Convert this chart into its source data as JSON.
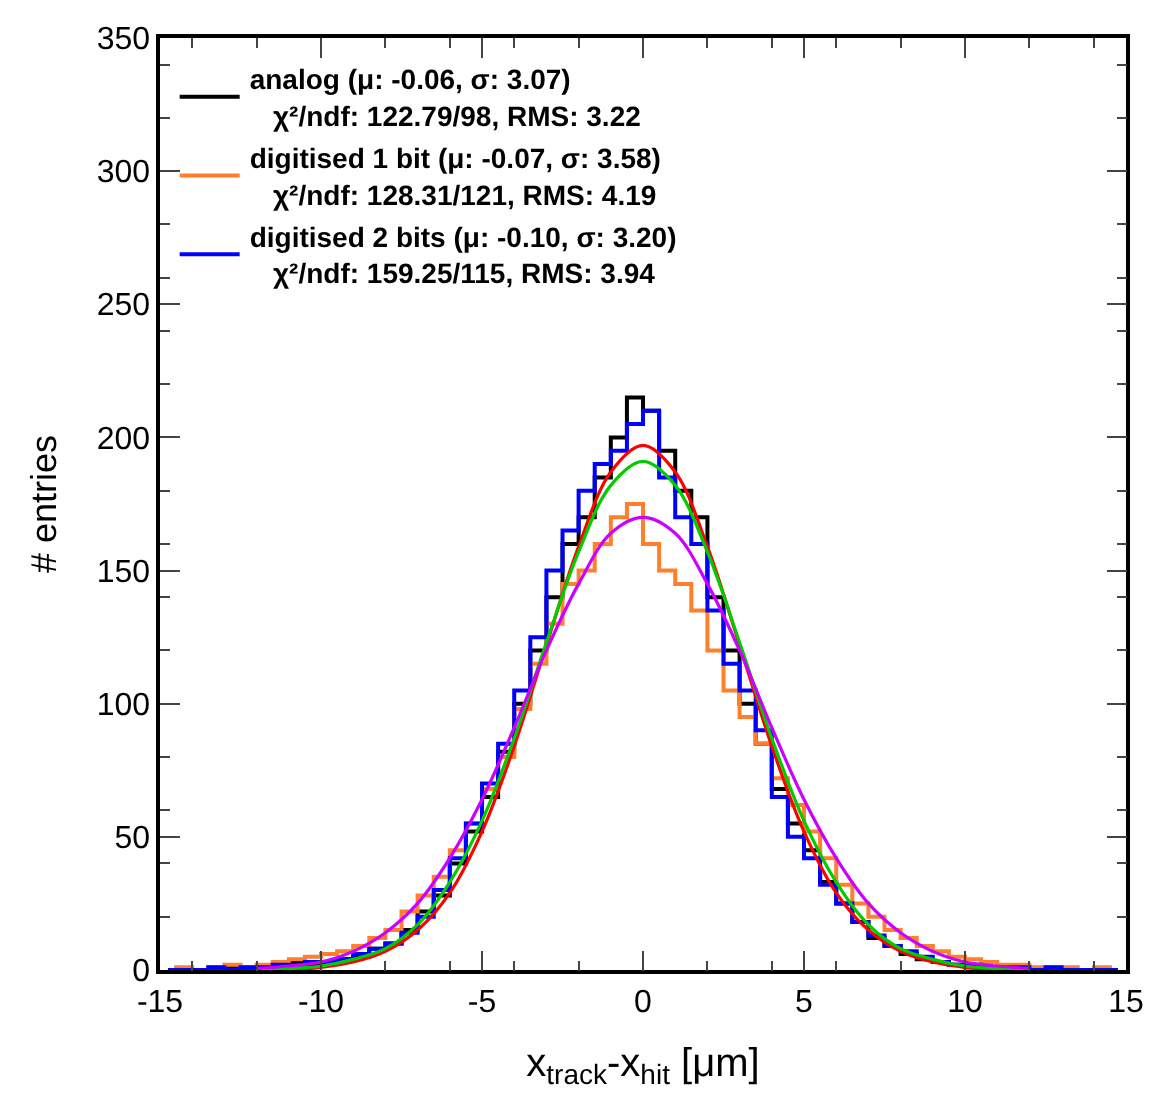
{
  "chart_data": {
    "type": "step",
    "xlabel": "x$_{track}$-x$_{hit}$ [μm]",
    "ylabel": "# entries",
    "xlim": [
      -15,
      15
    ],
    "xticks": [
      -15,
      -10,
      -5,
      0,
      5,
      10,
      15
    ],
    "ylim": [
      0,
      350
    ],
    "yticks": [
      0,
      50,
      100,
      150,
      200,
      250,
      300,
      350
    ],
    "legend": "top left",
    "series": [
      {
        "name": "analog (μ: -0.06, σ: 3.07)\nχ²/ndf: 122.79/98, RMS: 3.22",
        "color": "#000000",
        "x": [
          -14.75,
          -14.25,
          -13.75,
          -13.25,
          -12.75,
          -12.25,
          -11.75,
          -11.25,
          -10.75,
          -10.25,
          -9.75,
          -9.25,
          -8.75,
          -8.25,
          -7.75,
          -7.25,
          -6.75,
          -6.25,
          -5.75,
          -5.25,
          -4.75,
          -4.25,
          -3.75,
          -3.25,
          -2.75,
          -2.25,
          -1.75,
          -1.25,
          -0.75,
          -0.25,
          0.25,
          0.75,
          1.25,
          1.75,
          2.25,
          2.75,
          3.25,
          3.75,
          4.25,
          4.75,
          5.25,
          5.75,
          6.25,
          6.75,
          7.25,
          7.75,
          8.25,
          8.75,
          9.25,
          9.75,
          10.25,
          10.75,
          11.25,
          11.75,
          12.25,
          12.75,
          13.25,
          13.75,
          14.25,
          14.75
        ],
        "values": [
          0,
          0,
          0,
          0,
          1,
          0,
          0,
          2,
          3,
          2,
          3,
          4,
          5,
          8,
          10,
          15,
          22,
          28,
          40,
          52,
          65,
          82,
          100,
          120,
          140,
          160,
          170,
          185,
          200,
          215,
          210,
          195,
          180,
          170,
          140,
          120,
          100,
          85,
          68,
          55,
          45,
          33,
          25,
          18,
          12,
          9,
          6,
          4,
          3,
          2,
          1,
          0,
          0,
          0,
          0,
          0,
          0,
          0,
          0,
          0
        ]
      },
      {
        "name": "digitised 1 bit (μ: -0.07, σ: 3.58)\nχ²/ndf: 128.31/121, RMS: 4.19",
        "color": "#ff7f2a",
        "x": [
          -14.75,
          -14.25,
          -13.75,
          -13.25,
          -12.75,
          -12.25,
          -11.75,
          -11.25,
          -10.75,
          -10.25,
          -9.75,
          -9.25,
          -8.75,
          -8.25,
          -7.75,
          -7.25,
          -6.75,
          -6.25,
          -5.75,
          -5.25,
          -4.75,
          -4.25,
          -3.75,
          -3.25,
          -2.75,
          -2.25,
          -1.75,
          -1.25,
          -0.75,
          -0.25,
          0.25,
          0.75,
          1.25,
          1.75,
          2.25,
          2.75,
          3.25,
          3.75,
          4.25,
          4.75,
          5.25,
          5.75,
          6.25,
          6.75,
          7.25,
          7.75,
          8.25,
          8.75,
          9.25,
          9.75,
          10.25,
          10.75,
          11.25,
          11.75,
          12.25,
          12.75,
          13.25,
          13.75,
          14.25,
          14.75
        ],
        "values": [
          0,
          1,
          0,
          1,
          2,
          1,
          2,
          3,
          4,
          5,
          6,
          7,
          9,
          12,
          15,
          22,
          28,
          35,
          45,
          55,
          68,
          80,
          98,
          115,
          130,
          145,
          150,
          160,
          170,
          175,
          160,
          150,
          145,
          135,
          120,
          105,
          95,
          85,
          72,
          62,
          52,
          42,
          32,
          25,
          20,
          15,
          12,
          9,
          7,
          5,
          4,
          3,
          2,
          2,
          1,
          1,
          1,
          0,
          1,
          0
        ]
      },
      {
        "name": "digitised 2 bits (μ: -0.10, σ: 3.20)\nχ²/ndf: 159.25/115, RMS: 3.94",
        "color": "#0000ff",
        "x": [
          -14.75,
          -14.25,
          -13.75,
          -13.25,
          -12.75,
          -12.25,
          -11.75,
          -11.25,
          -10.75,
          -10.25,
          -9.75,
          -9.25,
          -8.75,
          -8.25,
          -7.75,
          -7.25,
          -6.75,
          -6.25,
          -5.75,
          -5.25,
          -4.75,
          -4.25,
          -3.75,
          -3.25,
          -2.75,
          -2.25,
          -1.75,
          -1.25,
          -0.75,
          -0.25,
          0.25,
          0.75,
          1.25,
          1.75,
          2.25,
          2.75,
          3.25,
          3.75,
          4.25,
          4.75,
          5.25,
          5.75,
          6.25,
          6.75,
          7.25,
          7.75,
          8.25,
          8.75,
          9.25,
          9.75,
          10.25,
          10.75,
          11.25,
          11.75,
          12.25,
          12.75,
          13.25,
          13.75,
          14.25,
          14.75
        ],
        "values": [
          0,
          0,
          0,
          1,
          0,
          1,
          1,
          2,
          2,
          3,
          3,
          4,
          6,
          8,
          10,
          14,
          20,
          30,
          42,
          55,
          70,
          85,
          105,
          125,
          150,
          165,
          180,
          190,
          195,
          205,
          210,
          185,
          170,
          160,
          135,
          115,
          105,
          90,
          65,
          50,
          42,
          32,
          25,
          18,
          13,
          9,
          7,
          5,
          3,
          2,
          2,
          1,
          1,
          1,
          0,
          1,
          0,
          0,
          0,
          0
        ]
      },
      {
        "type": "line",
        "color": "#ff0000",
        "x": [
          -12,
          -11,
          -10,
          -9,
          -8,
          -7,
          -6,
          -5,
          -4,
          -3,
          -2,
          -1,
          0,
          1,
          2,
          3,
          4,
          5,
          6,
          7,
          8,
          9,
          10,
          11,
          12
        ],
        "values": [
          0,
          0,
          1,
          3,
          7,
          15,
          29,
          52,
          84,
          122,
          159,
          187,
          197,
          187,
          159,
          122,
          84,
          52,
          29,
          15,
          7,
          3,
          1,
          0,
          0
        ]
      },
      {
        "type": "line",
        "color": "#00cc00",
        "x": [
          -12,
          -11,
          -10,
          -9,
          -8,
          -7,
          -6,
          -5,
          -4,
          -3,
          -2,
          -1,
          0,
          1,
          2,
          3,
          4,
          5,
          6,
          7,
          8,
          9,
          10,
          11,
          12
        ],
        "values": [
          0,
          0.5,
          1.5,
          4,
          8,
          17,
          33,
          56,
          87,
          123,
          157,
          182,
          191,
          182,
          157,
          123,
          87,
          56,
          33,
          17,
          8,
          4,
          1.5,
          0.5,
          0
        ]
      },
      {
        "type": "line",
        "color": "#cc00ff",
        "x": [
          -12,
          -11,
          -10,
          -9,
          -8,
          -7,
          -6,
          -5,
          -4,
          -3,
          -2,
          -1,
          0,
          1,
          2,
          3,
          4,
          5,
          6,
          7,
          8,
          9,
          10,
          11,
          12
        ],
        "values": [
          0.6,
          1.5,
          3,
          7,
          14,
          25,
          42,
          64,
          91,
          120,
          145,
          164,
          170,
          164,
          145,
          120,
          91,
          64,
          42,
          25,
          14,
          7,
          3,
          1.5,
          0.6
        ]
      }
    ]
  }
}
